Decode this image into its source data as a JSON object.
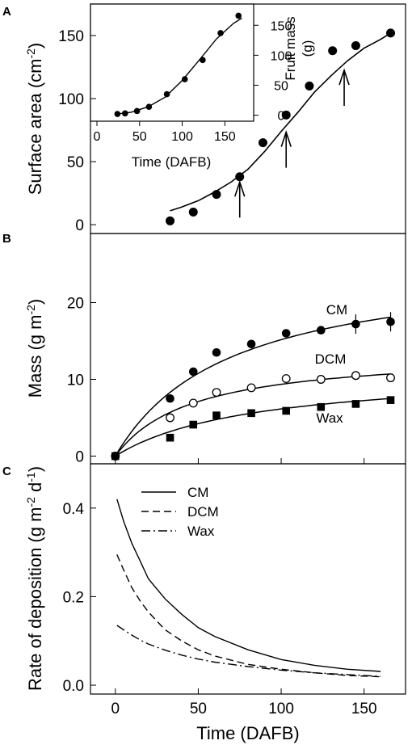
{
  "chart_data": [
    {
      "panel": "A",
      "type": "scatter",
      "ylabel": "Surface area (cm",
      "ylabel_sup": "-2",
      "ylabel_end": ")",
      "xlim": [
        -15,
        175
      ],
      "ylim": [
        -7,
        175
      ],
      "y_ticks": [
        0,
        50,
        100,
        150
      ],
      "points": {
        "x": [
          33,
          47,
          61,
          75,
          89,
          103,
          117,
          131,
          145,
          166
        ],
        "y": [
          3,
          10,
          24,
          38,
          65,
          87,
          110,
          138,
          142,
          152
        ]
      },
      "fit": {
        "x": [
          33,
          40,
          50,
          60,
          70,
          80,
          90,
          100,
          110,
          120,
          130,
          140,
          150,
          160,
          166
        ],
        "y": [
          11,
          14,
          19,
          26,
          34,
          44,
          58,
          74,
          89,
          105,
          118,
          130,
          140,
          147,
          152
        ]
      },
      "arrows_x": [
        75,
        103,
        138
      ],
      "inset": {
        "type": "scatter",
        "xlabel": "Time (DAFB)",
        "ylabel": "Fruit mass",
        "ylabel_unit": "(g)",
        "xlim": [
          0,
          180
        ],
        "ylim": [
          -10,
          180
        ],
        "x_ticks": [
          0,
          50,
          100,
          150
        ],
        "y_ticks": [
          0,
          50,
          100,
          150
        ],
        "points": {
          "x": [
            24,
            33,
            47,
            61,
            82,
            103,
            124,
            145,
            166
          ],
          "y": [
            2,
            3,
            7,
            14,
            35,
            60,
            92,
            137,
            166
          ]
        },
        "fit": {
          "x": [
            24,
            40,
            60,
            80,
            100,
            120,
            140,
            160,
            170
          ],
          "y": [
            2,
            5,
            14,
            30,
            58,
            92,
            127,
            153,
            162
          ]
        }
      }
    },
    {
      "panel": "B",
      "type": "line",
      "ylabel": "Mass (g m",
      "ylabel_sup": "-2",
      "ylabel_end": ")",
      "xlim": [
        -15,
        175
      ],
      "ylim": [
        -1,
        29
      ],
      "y_ticks": [
        0,
        10,
        20
      ],
      "series": [
        {
          "name": "CM",
          "marker": "filled-circle",
          "x": [
            0,
            33,
            47,
            61,
            82,
            103,
            124,
            145,
            166
          ],
          "y": [
            0,
            7.5,
            11,
            13.5,
            14.6,
            16,
            16.4,
            17.2,
            17.5
          ],
          "fit_y": [
            0,
            8.3,
            10.5,
            12.2,
            14.1,
            15.5,
            16.6,
            17.5,
            18.1
          ]
        },
        {
          "name": "DCM",
          "marker": "open-circle",
          "x": [
            0,
            33,
            47,
            61,
            82,
            103,
            124,
            145,
            166
          ],
          "y": [
            0,
            5,
            6.9,
            8.3,
            8.9,
            10.1,
            10.0,
            10.5,
            10.2
          ],
          "fit_y": [
            0,
            5.7,
            6.8,
            7.7,
            8.7,
            9.4,
            10.0,
            10.4,
            10.7
          ]
        },
        {
          "name": "Wax",
          "marker": "filled-square",
          "x": [
            0,
            33,
            47,
            61,
            82,
            103,
            124,
            145,
            166
          ],
          "y": [
            0,
            2.4,
            4.1,
            5.3,
            5.6,
            5.9,
            6.4,
            6.8,
            7.3
          ],
          "fit_y": [
            0,
            3.2,
            4.0,
            4.7,
            5.5,
            6.1,
            6.6,
            7.1,
            7.5
          ]
        }
      ],
      "fit_x": [
        0,
        33,
        47,
        61,
        82,
        103,
        124,
        145,
        166
      ]
    },
    {
      "panel": "C",
      "type": "line",
      "ylabel": "Rate of deposition (g m",
      "ylabel_sup1": "-2",
      "ylabel_mid": " d",
      "ylabel_sup2": "-1",
      "ylabel_end": ")",
      "xlabel": "Time (DAFB)",
      "xlim": [
        -15,
        175
      ],
      "ylim": [
        -0.02,
        0.5
      ],
      "x_ticks": [
        0,
        50,
        100,
        150
      ],
      "y_ticks": [
        0.0,
        0.2,
        0.4
      ],
      "y_tick_labels": [
        "0.0",
        "0.2",
        "0.4"
      ],
      "x": [
        1,
        5,
        10,
        15,
        20,
        30,
        40,
        50,
        60,
        80,
        100,
        120,
        140,
        160
      ],
      "series": [
        {
          "name": "CM",
          "style": "solid",
          "y": [
            0.42,
            0.37,
            0.32,
            0.28,
            0.24,
            0.195,
            0.16,
            0.13,
            0.11,
            0.08,
            0.058,
            0.045,
            0.036,
            0.031
          ]
        },
        {
          "name": "DCM",
          "style": "dashed",
          "y": [
            0.295,
            0.26,
            0.22,
            0.19,
            0.165,
            0.125,
            0.1,
            0.08,
            0.066,
            0.047,
            0.036,
            0.028,
            0.022,
            0.019
          ]
        },
        {
          "name": "Wax",
          "style": "dashdot",
          "y": [
            0.135,
            0.125,
            0.113,
            0.102,
            0.093,
            0.079,
            0.068,
            0.059,
            0.052,
            0.042,
            0.034,
            0.028,
            0.024,
            0.02
          ]
        }
      ]
    }
  ]
}
